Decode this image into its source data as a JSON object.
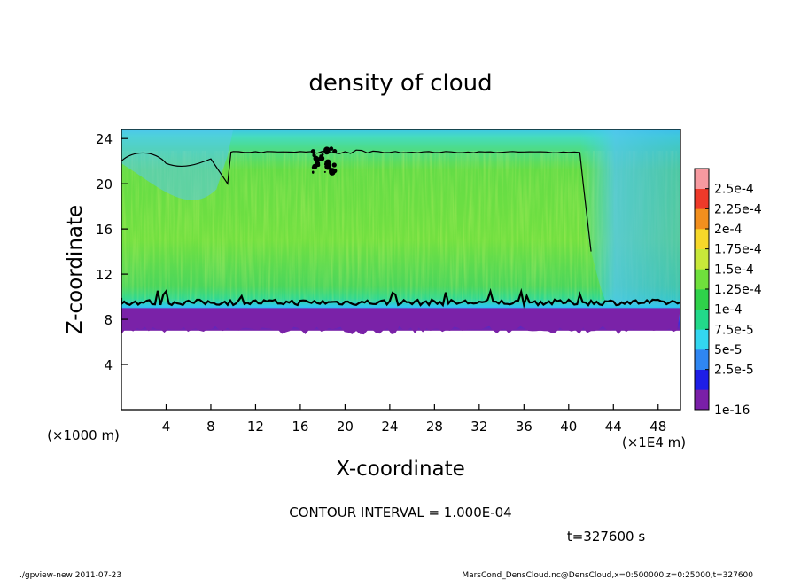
{
  "chart_data": {
    "type": "heatmap",
    "title": "density of cloud",
    "xlabel": "X-coordinate",
    "ylabel": "Z-coordinate",
    "x_unit_left": "(×1000 m)",
    "x_unit_right": "(×1E4 m)",
    "xlim": [
      0,
      50
    ],
    "ylim": [
      0,
      24.8
    ],
    "x_ticks": [
      4,
      8,
      12,
      16,
      20,
      24,
      28,
      32,
      36,
      40,
      44,
      48
    ],
    "y_ticks": [
      4,
      8,
      12,
      16,
      20,
      24
    ],
    "colorbar": {
      "levels": [
        "1e-16",
        "2.5e-5",
        "5e-5",
        "7.5e-5",
        "1e-4",
        "1.25e-4",
        "1.5e-4",
        "1.75e-4",
        "2e-4",
        "2.25e-4",
        "2.5e-4"
      ],
      "colors": [
        "#7a1fa8",
        "#1e1ee6",
        "#2f86f2",
        "#33d6f0",
        "#22d98a",
        "#2fd24a",
        "#6fe03c",
        "#c8e83a",
        "#f6d82a",
        "#f28f1e",
        "#ee3a2a",
        "#f79aa0"
      ]
    },
    "field": {
      "cloud_base_z": [
        7.0,
        7.2,
        7.3,
        7.4
      ],
      "lower_contour_z": 9.5,
      "upper_contour_z": 22.8,
      "dense_core_value": "1.5e-4"
    },
    "contour_interval": "CONTOUR INTERVAL = 1.000E-04",
    "time_label": "t=327600 s"
  },
  "footer": {
    "left": "./gpview-new   2011-07-23",
    "right": "MarsCond_DensCloud.nc@DensCloud,x=0:500000,z=0:25000,t=327600"
  }
}
